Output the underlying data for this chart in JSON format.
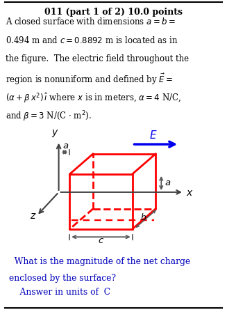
{
  "title": "011 (part 1 of 2) 10.0 points",
  "line1": "A closed surface with dimensions $a = b =$",
  "line2": "0.494 m and $c = 0.8892$ m is located as in",
  "line3": "the figure.  The electric field throughout the",
  "line4": "region is nonuniform and defined by $\\vec{E} =$",
  "line5": "$(\\alpha + \\beta\\, x^2)\\,\\hat{\\imath}$ where $x$ is in meters, $\\alpha = 4$ N/C,",
  "line6": "and $\\beta = 3$ N/(C $\\cdot$ m$^2$).",
  "footer1": "  What is the magnitude of the net charge",
  "footer2": "enclosed by the surface?",
  "footer3": "    Answer in units of  C",
  "box_color": "#ff0000",
  "axis_color": "#404040",
  "E_color": "#0000ee",
  "dim_color": "#555555",
  "blue_text": "#0000bb",
  "bg": "#ffffff",
  "black": "#000000"
}
